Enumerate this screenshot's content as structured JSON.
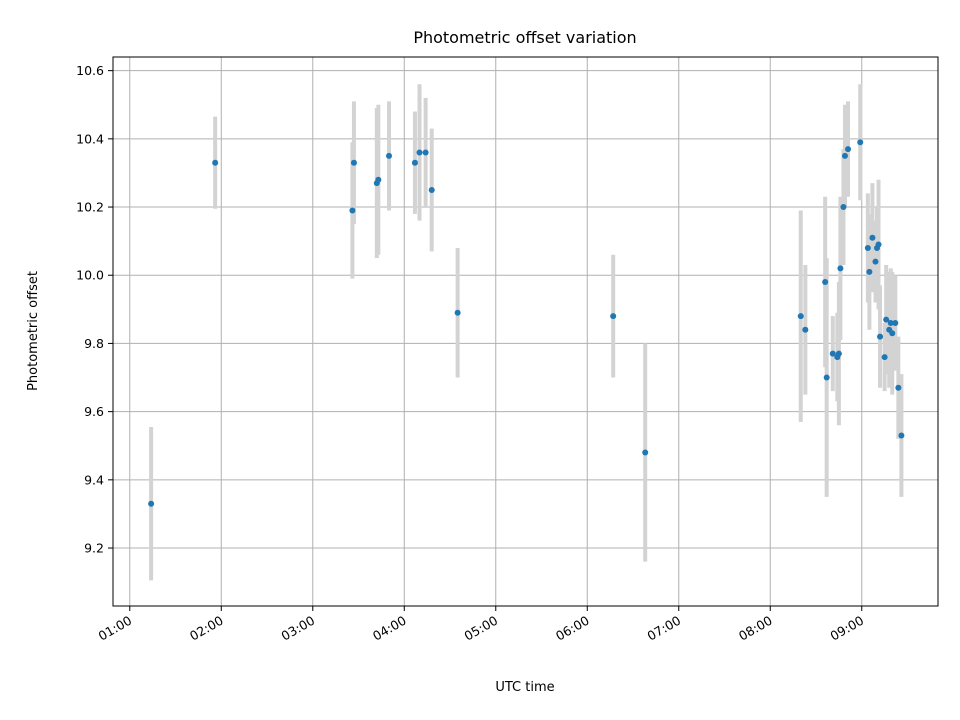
{
  "chart_data": {
    "type": "scatter",
    "title": "Photometric offset variation",
    "xlabel": "UTC time",
    "ylabel": "Photometric offset",
    "x_ticks": [
      "01:00",
      "02:00",
      "03:00",
      "04:00",
      "05:00",
      "06:00",
      "07:00",
      "08:00",
      "09:00"
    ],
    "y_ticks": [
      "9.2",
      "9.4",
      "9.6",
      "9.8",
      "10.0",
      "10.2",
      "10.4",
      "10.6"
    ],
    "xlim": [
      "00:49",
      "09:50"
    ],
    "ylim": [
      9.03,
      10.64
    ],
    "grid": true,
    "marker_color": "#1f77b4",
    "errorbar_color": "#d3d3d3",
    "points": [
      {
        "t": "01:14",
        "y": 9.33,
        "err": 0.225
      },
      {
        "t": "01:56",
        "y": 10.33,
        "err": 0.135
      },
      {
        "t": "03:26",
        "y": 10.19,
        "err": 0.2
      },
      {
        "t": "03:27",
        "y": 10.33,
        "err": 0.18
      },
      {
        "t": "03:42",
        "y": 10.27,
        "err": 0.22
      },
      {
        "t": "03:43",
        "y": 10.28,
        "err": 0.22
      },
      {
        "t": "03:50",
        "y": 10.35,
        "err": 0.16
      },
      {
        "t": "04:07",
        "y": 10.33,
        "err": 0.15
      },
      {
        "t": "04:10",
        "y": 10.36,
        "err": 0.2
      },
      {
        "t": "04:14",
        "y": 10.36,
        "err": 0.16
      },
      {
        "t": "04:18",
        "y": 10.25,
        "err": 0.18
      },
      {
        "t": "04:35",
        "y": 9.89,
        "err": 0.19
      },
      {
        "t": "06:17",
        "y": 9.88,
        "err": 0.18
      },
      {
        "t": "06:38",
        "y": 9.48,
        "err": 0.32
      },
      {
        "t": "08:20",
        "y": 9.88,
        "err": 0.31
      },
      {
        "t": "08:23",
        "y": 9.84,
        "err": 0.19
      },
      {
        "t": "08:36",
        "y": 9.98,
        "err": 0.25
      },
      {
        "t": "08:37",
        "y": 9.7,
        "err": 0.35
      },
      {
        "t": "08:41",
        "y": 9.77,
        "err": 0.11
      },
      {
        "t": "08:44",
        "y": 9.76,
        "err": 0.13
      },
      {
        "t": "08:45",
        "y": 9.77,
        "err": 0.21
      },
      {
        "t": "08:46",
        "y": 10.02,
        "err": 0.21
      },
      {
        "t": "08:48",
        "y": 10.2,
        "err": 0.17
      },
      {
        "t": "08:49",
        "y": 10.35,
        "err": 0.15
      },
      {
        "t": "08:51",
        "y": 10.37,
        "err": 0.14
      },
      {
        "t": "08:59",
        "y": 10.39,
        "err": 0.17
      },
      {
        "t": "09:04",
        "y": 10.08,
        "err": 0.16
      },
      {
        "t": "09:05",
        "y": 10.01,
        "err": 0.17
      },
      {
        "t": "09:07",
        "y": 10.11,
        "err": 0.16
      },
      {
        "t": "09:09",
        "y": 10.04,
        "err": 0.12
      },
      {
        "t": "09:10",
        "y": 10.08,
        "err": 0.12
      },
      {
        "t": "09:11",
        "y": 10.09,
        "err": 0.19
      },
      {
        "t": "09:12",
        "y": 9.82,
        "err": 0.15
      },
      {
        "t": "09:15",
        "y": 9.76,
        "err": 0.1
      },
      {
        "t": "09:16",
        "y": 9.87,
        "err": 0.16
      },
      {
        "t": "09:18",
        "y": 9.84,
        "err": 0.17
      },
      {
        "t": "09:19",
        "y": 9.86,
        "err": 0.16
      },
      {
        "t": "09:20",
        "y": 9.83,
        "err": 0.18
      },
      {
        "t": "09:22",
        "y": 9.86,
        "err": 0.14
      },
      {
        "t": "09:24",
        "y": 9.67,
        "err": 0.15
      },
      {
        "t": "09:26",
        "y": 9.53,
        "err": 0.18
      }
    ]
  }
}
